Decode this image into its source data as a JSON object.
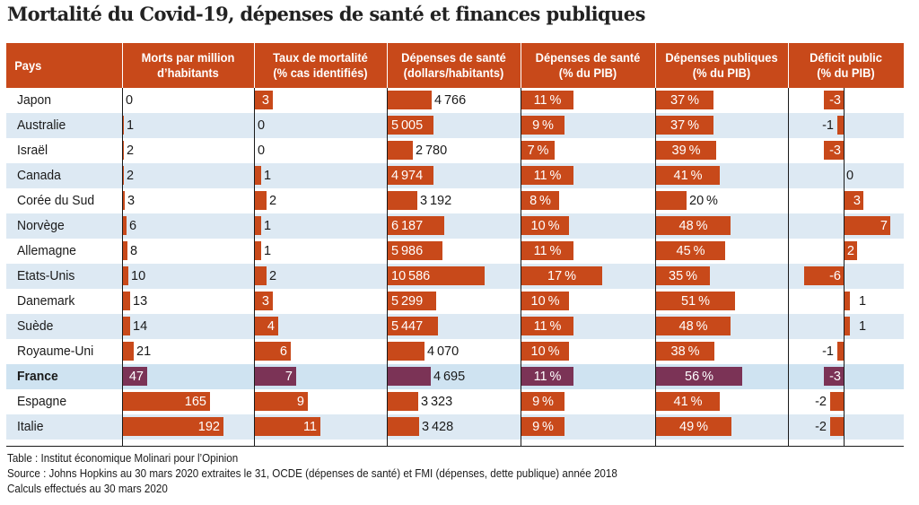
{
  "title": "Mortalité du Covid-19, dépenses de santé et finances publiques",
  "colors": {
    "bar": "#c8491a",
    "highlight": "#7b3356",
    "header": "#c8491a",
    "row_alt": "#dde9f3"
  },
  "chart_data": {
    "type": "table",
    "columns": [
      {
        "key": "pays",
        "label": "Pays"
      },
      {
        "key": "morts",
        "label": "Morts par million d’habitants",
        "label_lines": [
          "Morts par million",
          "d’habitants"
        ]
      },
      {
        "key": "taux",
        "label": "Taux de mortalité (% cas identifiés)",
        "label_lines": [
          "Taux de mortalité",
          "(% cas identifiés)"
        ]
      },
      {
        "key": "dep_hab",
        "label": "Dépenses de santé (dollars/habitants)",
        "label_lines": [
          "Dépenses de santé",
          "(dollars/habitants)"
        ]
      },
      {
        "key": "dep_pib",
        "label": "Dépenses de santé (% du PIB)",
        "label_lines": [
          "Dépenses de santé",
          "(% du PIB)"
        ]
      },
      {
        "key": "pub_pib",
        "label": "Dépenses publiques (% du PIB)",
        "label_lines": [
          "Dépenses publiques",
          "(% du PIB)"
        ]
      },
      {
        "key": "deficit",
        "label": "Déficit public (% du PIB)",
        "label_lines": [
          "Déficit public",
          "(% du PIB)"
        ]
      }
    ],
    "rows": [
      {
        "pays": "Japon",
        "morts": 0,
        "taux": 3,
        "dep_hab": 4766,
        "dep_pib": 11,
        "pub_pib": 37,
        "deficit": -3
      },
      {
        "pays": "Australie",
        "morts": 1,
        "taux": 0,
        "dep_hab": 5005,
        "dep_pib": 9,
        "pub_pib": 37,
        "deficit": -1
      },
      {
        "pays": "Israël",
        "morts": 2,
        "taux": 0,
        "dep_hab": 2780,
        "dep_pib": 7,
        "pub_pib": 39,
        "deficit": -3
      },
      {
        "pays": "Canada",
        "morts": 2,
        "taux": 1,
        "dep_hab": 4974,
        "dep_pib": 11,
        "pub_pib": 41,
        "deficit": 0
      },
      {
        "pays": "Corée du Sud",
        "morts": 3,
        "taux": 2,
        "dep_hab": 3192,
        "dep_pib": 8,
        "pub_pib": 20,
        "deficit": 3
      },
      {
        "pays": "Norvège",
        "morts": 6,
        "taux": 1,
        "dep_hab": 6187,
        "dep_pib": 10,
        "pub_pib": 48,
        "deficit": 7
      },
      {
        "pays": "Allemagne",
        "morts": 8,
        "taux": 1,
        "dep_hab": 5986,
        "dep_pib": 11,
        "pub_pib": 45,
        "deficit": 2
      },
      {
        "pays": "Etats-Unis",
        "morts": 10,
        "taux": 2,
        "dep_hab": 10586,
        "dep_pib": 17,
        "pub_pib": 35,
        "deficit": -6
      },
      {
        "pays": "Danemark",
        "morts": 13,
        "taux": 3,
        "dep_hab": 5299,
        "dep_pib": 10,
        "pub_pib": 51,
        "deficit": 1
      },
      {
        "pays": "Suède",
        "morts": 14,
        "taux": 4,
        "dep_hab": 5447,
        "dep_pib": 11,
        "pub_pib": 48,
        "deficit": 1
      },
      {
        "pays": "Royaume-Uni",
        "morts": 21,
        "taux": 6,
        "dep_hab": 4070,
        "dep_pib": 10,
        "pub_pib": 38,
        "deficit": -1
      },
      {
        "pays": "France",
        "morts": 47,
        "taux": 7,
        "dep_hab": 4695,
        "dep_pib": 11,
        "pub_pib": 56,
        "deficit": -3,
        "highlight": true
      },
      {
        "pays": "Espagne",
        "morts": 165,
        "taux": 9,
        "dep_hab": 3323,
        "dep_pib": 9,
        "pub_pib": 41,
        "deficit": -2
      },
      {
        "pays": "Italie",
        "morts": 192,
        "taux": 11,
        "dep_hab": 3428,
        "dep_pib": 9,
        "pub_pib": 49,
        "deficit": -2
      }
    ]
  },
  "footnotes": [
    "Table :  Institut économique Molinari pour l’Opinion",
    "Source : Johns Hopkins au 30 mars 2020 extraites le 31, OCDE (dépenses de santé) et FMI (dépenses, dette publique) année 2018",
    "Calculs effectués au 30 mars 2020"
  ]
}
